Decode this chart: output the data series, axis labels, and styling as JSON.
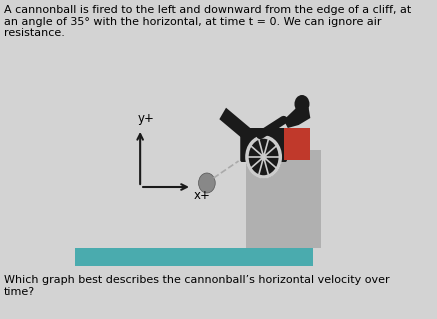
{
  "bg_color": "#d3d3d3",
  "title_text": "A cannonball is fired to the left and downward from the edge of a cliff, at\nan angle of 35° with the horizontal, at time t = 0. We can ignore air\nresistance.",
  "question_text": "Which graph best describes the cannonball’s horizontal velocity over\ntime?",
  "cliff_color": "#b0b0b0",
  "ground_color": "#4aabae",
  "cannon_color": "#1a1a1a",
  "box_color": "#c0392b",
  "ball_color": "#888888",
  "axis_color": "#1a1a1a",
  "trail_color": "#aaaaaa"
}
